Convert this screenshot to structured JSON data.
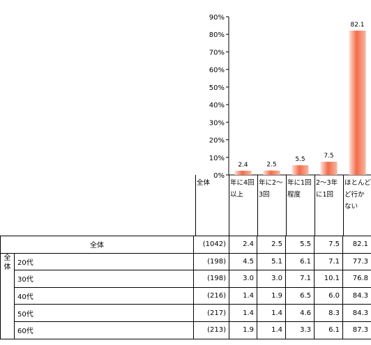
{
  "chart_data": {
    "type": "bar",
    "categories": [
      "年に4回以上",
      "年に2〜3回",
      "年に1回程度",
      "2〜3年に1回",
      "ほとんど行かない"
    ],
    "category_lines": [
      [
        "年に4回",
        "以上"
      ],
      [
        "年に2〜",
        "3回"
      ],
      [
        "年に1回",
        "程度"
      ],
      [
        "2〜3年",
        "に1回"
      ],
      [
        "ほとんど",
        "ど行か",
        "ない"
      ]
    ],
    "values": [
      2.4,
      2.5,
      5.5,
      7.5,
      82.1
    ],
    "value_labels": [
      "2.4",
      "2.5",
      "5.5",
      "7.5",
      "82.1"
    ],
    "y_ticks": [
      "0%",
      "10%",
      "20%",
      "30%",
      "40%",
      "50%",
      "60%",
      "70%",
      "80%",
      "90%"
    ],
    "ylim": [
      0,
      90
    ],
    "bar_color": "#f26b4a",
    "header_label": "全体"
  },
  "table": {
    "total_row": {
      "label": "全体",
      "n": "(1042)",
      "values": [
        "2.4",
        "2.5",
        "5.5",
        "7.5",
        "82.1"
      ]
    },
    "group_label": "全体",
    "rows": [
      {
        "label": "20代",
        "n": "(198)",
        "values": [
          "4.5",
          "5.1",
          "6.1",
          "7.1",
          "77.3"
        ]
      },
      {
        "label": "30代",
        "n": "(198)",
        "values": [
          "3.0",
          "3.0",
          "7.1",
          "10.1",
          "76.8"
        ]
      },
      {
        "label": "40代",
        "n": "(216)",
        "values": [
          "1.4",
          "1.9",
          "6.5",
          "6.0",
          "84.3"
        ]
      },
      {
        "label": "50代",
        "n": "(217)",
        "values": [
          "1.4",
          "1.4",
          "4.6",
          "8.3",
          "84.3"
        ]
      },
      {
        "label": "60代",
        "n": "(213)",
        "values": [
          "1.9",
          "1.4",
          "3.3",
          "6.1",
          "87.3"
        ]
      }
    ]
  }
}
